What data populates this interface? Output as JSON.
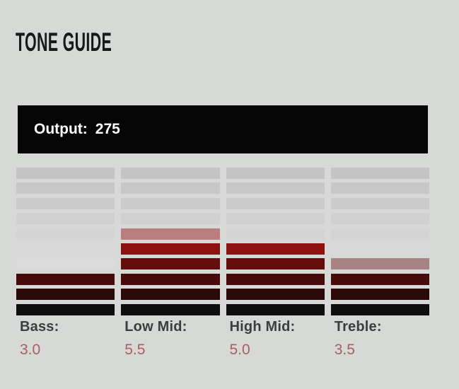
{
  "page": {
    "title": "TONE GUIDE",
    "background_color": "#d6d9d6",
    "title_color": "#17191c"
  },
  "output": {
    "label": "Output:",
    "value": "275",
    "bar_color": "#050505",
    "text_color": "#ffffff"
  },
  "meters": {
    "rows_per_meter": 10,
    "lit_color_accent": "#8e1111",
    "half_segment_color": "#b27e7e",
    "unlit_color_top": "#c3c4c3",
    "label_color": "#3b3e41",
    "value_color": "#a85f60",
    "columns": [
      {
        "id": "bass",
        "label": "Bass:",
        "value": "3.0",
        "lit_segments": 3,
        "segment_colors": [
          "#c3c4c3",
          "#c6c7c6",
          "#cacbca",
          "#cfd0cf",
          "#d3d4d3",
          "#d6d7d6",
          "#d9dad9",
          "#470b0b",
          "#2b0909",
          "#0e0e0e"
        ]
      },
      {
        "id": "low-mid",
        "label": "Low Mid:",
        "value": "5.5",
        "lit_segments": 5.5,
        "segment_colors": [
          "#c3c4c3",
          "#c6c7c6",
          "#cacbca",
          "#cfd0cf",
          "#b97d7d",
          "#8e1111",
          "#640d0d",
          "#470b0b",
          "#2b0909",
          "#0e0e0e"
        ]
      },
      {
        "id": "high-mid",
        "label": "High Mid:",
        "value": "5.0",
        "lit_segments": 5,
        "segment_colors": [
          "#c3c4c3",
          "#c6c7c6",
          "#cacbca",
          "#cfd0cf",
          "#d3d4d3",
          "#8e1111",
          "#640d0d",
          "#470b0b",
          "#2b0909",
          "#0e0e0e"
        ]
      },
      {
        "id": "treble",
        "label": "Treble:",
        "value": "3.5",
        "lit_segments": 3.5,
        "segment_colors": [
          "#c3c4c3",
          "#c6c7c6",
          "#cacbca",
          "#cfd0cf",
          "#d3d4d3",
          "#d6d7d6",
          "#a98383",
          "#470b0b",
          "#2b0909",
          "#0e0e0e"
        ]
      }
    ]
  }
}
